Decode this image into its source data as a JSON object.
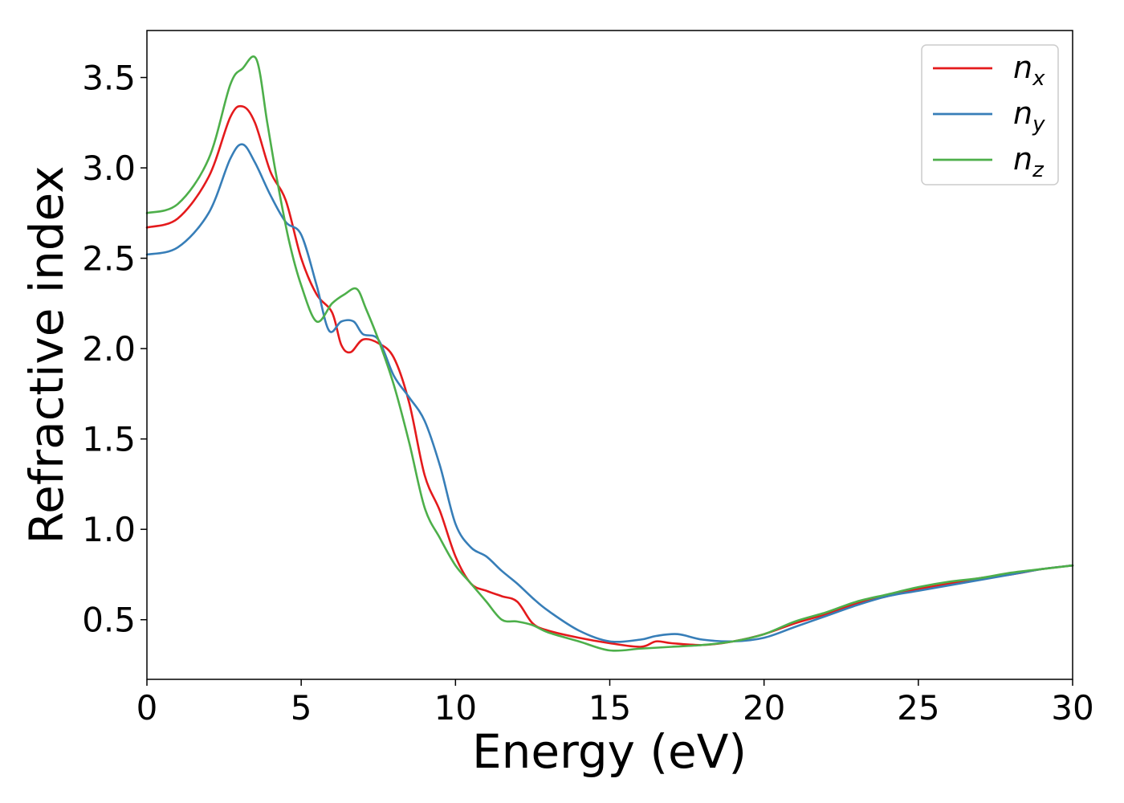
{
  "chart_data": {
    "type": "line",
    "title": "",
    "xlabel": "Energy (eV)",
    "ylabel": "Refractive index",
    "xlim": [
      0,
      30
    ],
    "ylim": [
      0.17,
      3.76
    ],
    "xticks": [
      0,
      5,
      10,
      15,
      20,
      25,
      30
    ],
    "xtick_labels": [
      "0",
      "5",
      "10",
      "15",
      "20",
      "25",
      "30"
    ],
    "yticks": [
      0.5,
      1.0,
      1.5,
      2.0,
      2.5,
      3.0,
      3.5
    ],
    "ytick_labels": [
      "0.5",
      "1.0",
      "1.5",
      "2.0",
      "2.5",
      "3.0",
      "3.5"
    ],
    "grid": false,
    "legend_position": "top-right",
    "series": [
      {
        "name": "n_x",
        "label_main": "n",
        "label_sub": "x",
        "color": "#e41a1c",
        "x": [
          0,
          1,
          2,
          2.7,
          3.1,
          3.5,
          4,
          4.5,
          5,
          5.5,
          6,
          6.3,
          6.6,
          7,
          7.5,
          8,
          8.5,
          9,
          9.5,
          10,
          10.5,
          11,
          11.5,
          12,
          12.5,
          13,
          14,
          15,
          16,
          16.5,
          17,
          18,
          19,
          20,
          21,
          22,
          23,
          24,
          25,
          26,
          27,
          28,
          29,
          30
        ],
        "y": [
          2.67,
          2.72,
          2.95,
          3.28,
          3.34,
          3.25,
          2.98,
          2.82,
          2.5,
          2.3,
          2.2,
          2.02,
          1.98,
          2.05,
          2.03,
          1.95,
          1.7,
          1.3,
          1.1,
          0.85,
          0.7,
          0.66,
          0.63,
          0.6,
          0.48,
          0.44,
          0.4,
          0.37,
          0.35,
          0.38,
          0.37,
          0.36,
          0.38,
          0.42,
          0.48,
          0.53,
          0.59,
          0.63,
          0.67,
          0.7,
          0.73,
          0.75,
          0.78,
          0.8
        ]
      },
      {
        "name": "n_y",
        "label_main": "n",
        "label_sub": "y",
        "color": "#377eb8",
        "x": [
          0,
          1,
          2,
          2.7,
          3.1,
          3.5,
          4,
          4.5,
          5,
          5.5,
          5.9,
          6.3,
          6.7,
          7,
          7.5,
          8,
          8.5,
          9,
          9.5,
          10,
          10.5,
          11,
          11.5,
          12,
          12.5,
          13,
          14,
          15,
          16,
          16.5,
          17.2,
          18,
          19,
          20,
          21,
          22,
          23,
          24,
          25,
          26,
          27,
          28,
          29,
          30
        ],
        "y": [
          2.52,
          2.56,
          2.75,
          3.05,
          3.13,
          3.03,
          2.85,
          2.7,
          2.63,
          2.35,
          2.1,
          2.15,
          2.15,
          2.08,
          2.05,
          1.85,
          1.73,
          1.6,
          1.35,
          1.03,
          0.9,
          0.85,
          0.77,
          0.7,
          0.62,
          0.55,
          0.44,
          0.38,
          0.39,
          0.41,
          0.42,
          0.39,
          0.38,
          0.4,
          0.46,
          0.52,
          0.58,
          0.63,
          0.66,
          0.69,
          0.72,
          0.75,
          0.78,
          0.8
        ]
      },
      {
        "name": "n_z",
        "label_main": "n",
        "label_sub": "z",
        "color": "#4daf4a",
        "x": [
          0,
          1,
          2,
          2.7,
          3.1,
          3.55,
          3.9,
          4.2,
          4.6,
          5,
          5.5,
          6,
          6.4,
          6.8,
          7.1,
          7.5,
          8,
          8.5,
          9,
          9.5,
          10,
          10.5,
          11,
          11.5,
          12,
          12.5,
          13,
          14,
          15,
          16,
          17,
          18,
          19,
          20,
          21,
          22,
          23,
          24,
          25,
          26,
          27,
          28,
          29,
          30
        ],
        "y": [
          2.75,
          2.8,
          3.05,
          3.46,
          3.55,
          3.6,
          3.25,
          2.95,
          2.6,
          2.35,
          2.15,
          2.25,
          2.3,
          2.33,
          2.22,
          2.05,
          1.8,
          1.48,
          1.12,
          0.95,
          0.8,
          0.7,
          0.6,
          0.5,
          0.49,
          0.47,
          0.43,
          0.38,
          0.33,
          0.34,
          0.35,
          0.36,
          0.38,
          0.42,
          0.49,
          0.54,
          0.6,
          0.64,
          0.68,
          0.71,
          0.73,
          0.76,
          0.78,
          0.8
        ]
      }
    ]
  }
}
